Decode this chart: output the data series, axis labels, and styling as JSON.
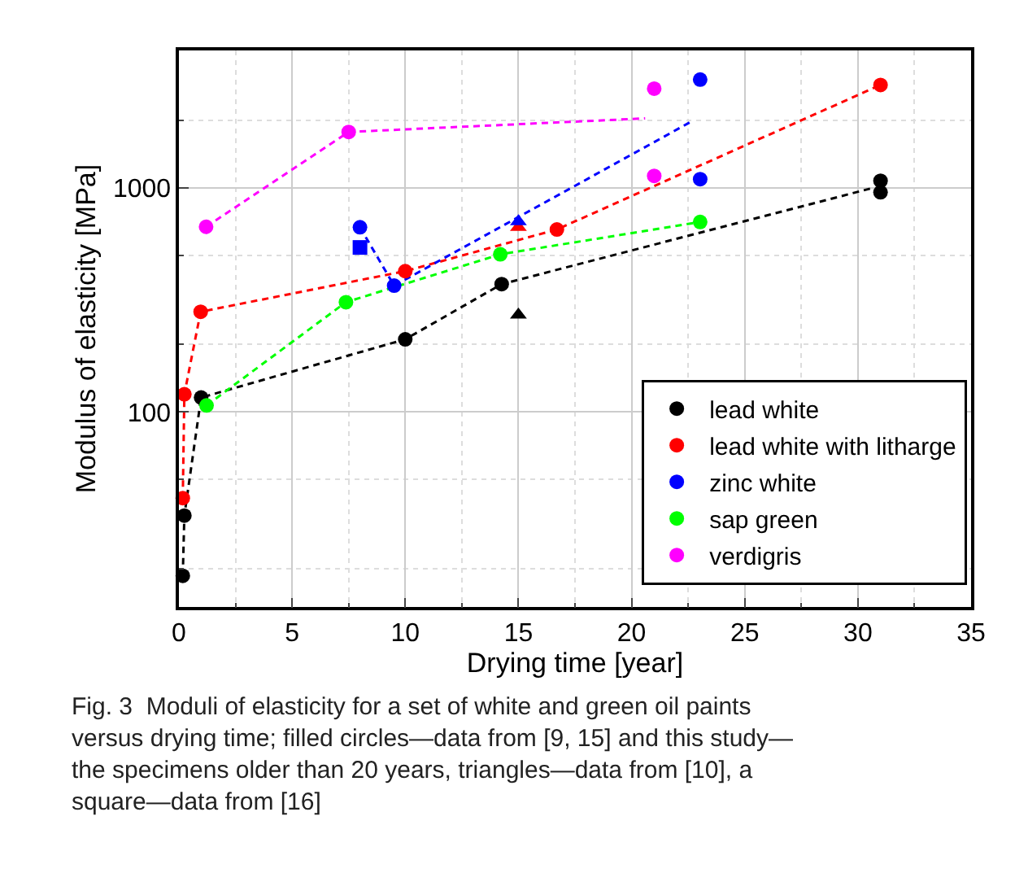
{
  "chart_data": {
    "type": "scatter",
    "xlabel": "Drying time [year]",
    "ylabel": "Modulus of elasticity [MPa]",
    "xlim": [
      0,
      35
    ],
    "xticks": [
      0,
      5,
      10,
      15,
      20,
      25,
      30,
      35
    ],
    "ylim": [
      13.5,
      4100
    ],
    "yticks": [
      100,
      1000
    ],
    "log": "y",
    "grid": true,
    "legend": "bottom right",
    "series": [
      {
        "type": "line",
        "color": "#000000",
        "line_style": "dashed",
        "marker": "none",
        "x": [
          0.17,
          0.24,
          0.98,
          10,
          14.26,
          30.6
        ],
        "values": [
          18.6,
          34.5,
          116,
          211,
          372,
          995
        ]
      },
      {
        "type": "line",
        "color": "#ff0000",
        "line_style": "dashed",
        "marker": "none",
        "x": [
          0.17,
          0.24,
          0.96,
          10,
          16.7,
          31
        ],
        "values": [
          41.3,
          120,
          280,
          425,
          652,
          2877
        ]
      },
      {
        "type": "line",
        "color": "#0000ff",
        "line_style": "dashed",
        "marker": "none",
        "x": [
          8,
          9.51,
          22.7
        ],
        "values": [
          667,
          366,
          1990
        ]
      },
      {
        "type": "line",
        "color": "#00ff00",
        "line_style": "dashed",
        "marker": "none",
        "x": [
          1.22,
          7.38,
          14.2,
          23.03
        ],
        "values": [
          107,
          309,
          505,
          704
        ]
      },
      {
        "type": "line",
        "color": "#ff00ff",
        "line_style": "dashed",
        "marker": "none",
        "x": [
          1.2,
          7.5,
          20.6
        ],
        "values": [
          670,
          1775,
          2040
        ]
      },
      {
        "name": "lead white",
        "color": "#000000",
        "marker": "circle",
        "x": [
          0.17,
          0.24,
          0.98,
          10,
          14.26,
          31,
          31
        ],
        "values": [
          18.6,
          34.5,
          116,
          211,
          372,
          1075,
          955
        ]
      },
      {
        "type": "scatter",
        "color": "#000000",
        "marker": "triangle",
        "x": [
          15
        ],
        "values": [
          271
        ]
      },
      {
        "name": "lead white with litharge",
        "color": "#ff0000",
        "marker": "circle",
        "x": [
          0.17,
          0.24,
          0.96,
          10,
          16.7,
          31
        ],
        "values": [
          41.3,
          120,
          280,
          425,
          652,
          2877
        ]
      },
      {
        "type": "scatter",
        "color": "#ff0000",
        "marker": "triangle",
        "x": [
          15
        ],
        "values": [
          667
        ]
      },
      {
        "name": "zinc white",
        "color": "#0000ff",
        "marker": "circle",
        "x": [
          8,
          9.51,
          23.03,
          23.03
        ],
        "values": [
          667,
          366,
          3040,
          1093
        ]
      },
      {
        "type": "scatter",
        "color": "#0000ff",
        "marker": "triangle",
        "x": [
          15
        ],
        "values": [
          708
        ]
      },
      {
        "type": "scatter",
        "color": "#0000ff",
        "marker": "square",
        "x": [
          8
        ],
        "values": [
          542
        ]
      },
      {
        "name": "sap green",
        "color": "#00ff00",
        "marker": "circle",
        "x": [
          1.22,
          7.38,
          14.2,
          23.03
        ],
        "values": [
          107,
          309,
          505,
          704
        ]
      },
      {
        "name": "verdigris",
        "color": "#ff00ff",
        "marker": "circle",
        "x": [
          1.2,
          7.5,
          21,
          21
        ],
        "values": [
          670,
          1775,
          2770,
          1130
        ]
      }
    ],
    "annotations": [
      "Fig. 3  Moduli of elasticity for a set of white and green oil paints versus drying time; filled circles—data from [9, 15] and this study—the specimens older than 20 years, triangles—data from [10], a square—data from [16]"
    ]
  }
}
